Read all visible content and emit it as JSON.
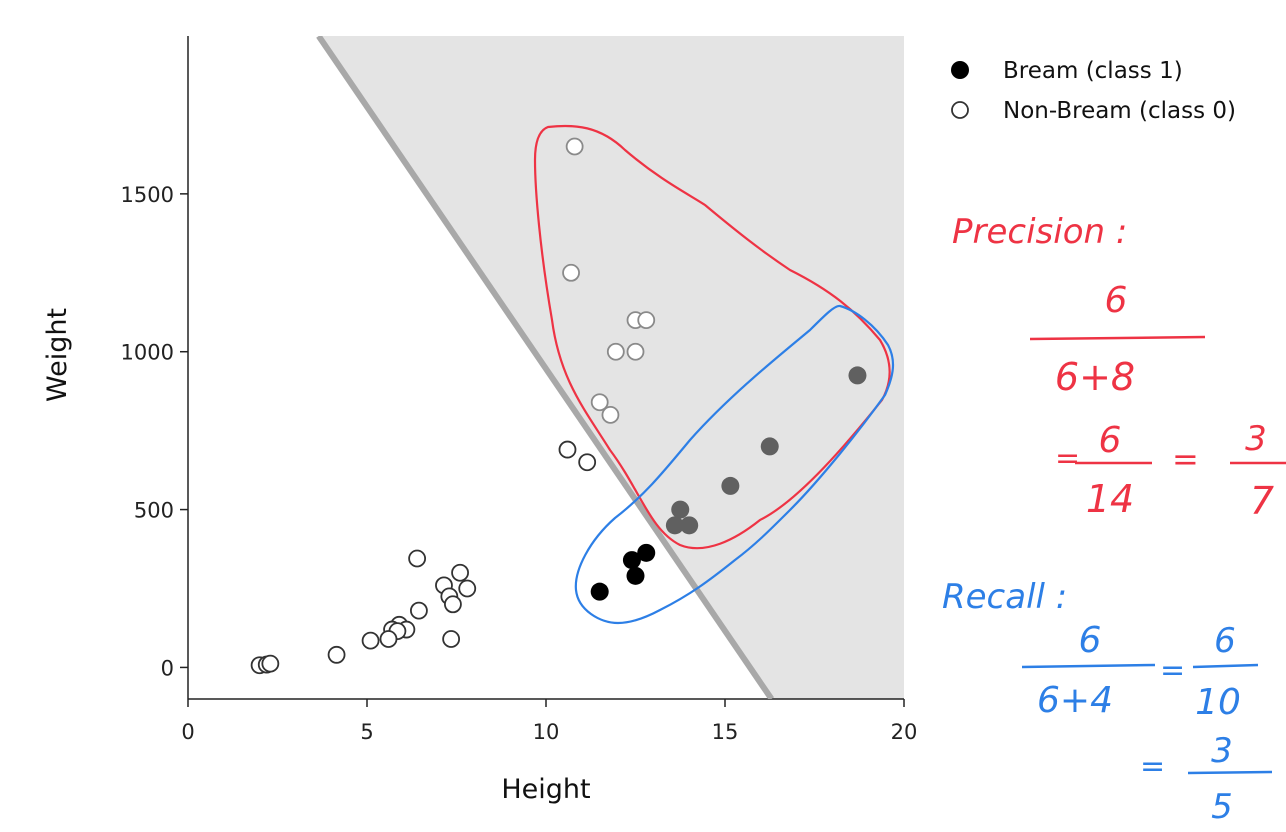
{
  "chart_data": {
    "type": "scatter",
    "xlabel": "Height",
    "ylabel": "Weight",
    "xlim": [
      0,
      20
    ],
    "ylim": [
      -100,
      2000
    ],
    "xticks": [
      0,
      5,
      10,
      15,
      20
    ],
    "yticks": [
      0,
      500,
      1000,
      1500
    ],
    "legend_position": "top-right",
    "series": [
      {
        "name": "Bream (class 1)",
        "marker": "filled",
        "points": [
          [
            11.5,
            240
          ],
          [
            12.4,
            340
          ],
          [
            12.8,
            363
          ],
          [
            12.5,
            290
          ],
          [
            13.6,
            450
          ],
          [
            13.75,
            500
          ],
          [
            14.0,
            450
          ],
          [
            15.15,
            575
          ],
          [
            16.25,
            700
          ],
          [
            18.7,
            925
          ]
        ]
      },
      {
        "name": "Non-Bream (class 0)",
        "marker": "open",
        "points": [
          [
            10.8,
            1650
          ],
          [
            10.7,
            1250
          ],
          [
            12.5,
            1100
          ],
          [
            12.8,
            1100
          ],
          [
            11.95,
            1000
          ],
          [
            12.5,
            1000
          ],
          [
            11.5,
            840
          ],
          [
            11.8,
            800
          ],
          [
            10.6,
            690
          ],
          [
            11.15,
            650
          ],
          [
            6.4,
            345
          ],
          [
            7.6,
            300
          ],
          [
            7.15,
            260
          ],
          [
            7.8,
            250
          ],
          [
            7.3,
            225
          ],
          [
            7.4,
            200
          ],
          [
            6.45,
            180
          ],
          [
            5.9,
            135
          ],
          [
            6.1,
            120
          ],
          [
            5.7,
            120
          ],
          [
            5.85,
            115
          ],
          [
            5.6,
            90
          ],
          [
            5.1,
            85
          ],
          [
            7.35,
            90
          ],
          [
            4.15,
            40
          ],
          [
            2.0,
            7
          ],
          [
            2.2,
            9
          ],
          [
            2.3,
            12
          ]
        ]
      }
    ],
    "decision_boundary": {
      "x": [
        3.65,
        16.3
      ],
      "y": [
        2000,
        -100
      ]
    },
    "annotations": {
      "precision_label": "Precision :",
      "precision_numerator": "6",
      "precision_denominator": "6+8",
      "precision_step_numerator": "6",
      "precision_step_denominator": "14",
      "precision_result_numerator": "3",
      "precision_result_denominator": "7",
      "recall_label": "Recall :",
      "recall_numerator": "6",
      "recall_denominator": "6+4",
      "recall_step_numerator": "6",
      "recall_step_denominator": "10",
      "recall_result_numerator": "3",
      "recall_result_denominator": "5"
    }
  },
  "colors": {
    "predicted_region": "#e4e4e4",
    "boundary": "#a8a8a8",
    "red_ink": "#ee3344",
    "blue_ink": "#2d7fe6",
    "bream_fill_inside": "#606060",
    "bream_fill_outside": "#000000",
    "open_marker_stroke": "#333333"
  }
}
